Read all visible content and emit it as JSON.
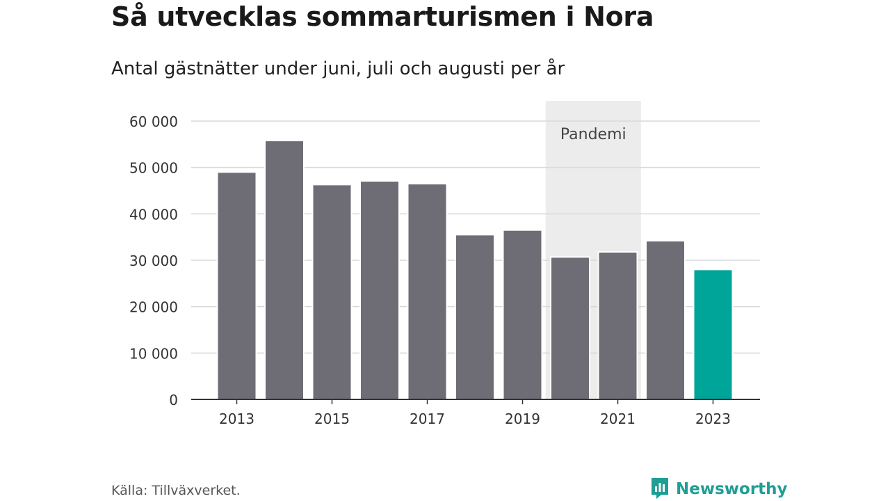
{
  "header": {
    "title": "Så utvecklas sommarturismen i Nora",
    "subtitle": "Antal gästnätter under juni, juli och augusti per år"
  },
  "footer": {
    "source": "Källa: Tillväxverket.",
    "brand": "Newsworthy"
  },
  "colors": {
    "bar": "#6e6d75",
    "highlight": "#00a59a",
    "band": "#ececec",
    "grid": "#d9d9d9",
    "axis": "#333333",
    "brand": "#1f9e95"
  },
  "chart_data": {
    "type": "bar",
    "categories": [
      "2013",
      "2014",
      "2015",
      "2016",
      "2017",
      "2018",
      "2019",
      "2020",
      "2021",
      "2022",
      "2023"
    ],
    "values": [
      49000,
      55800,
      46300,
      47100,
      46500,
      35500,
      36500,
      30700,
      31800,
      34200,
      28000
    ],
    "highlight_category": "2023",
    "x_tick_labels": [
      "2013",
      "2015",
      "2017",
      "2019",
      "2021",
      "2023"
    ],
    "y_ticks": [
      0,
      10000,
      20000,
      30000,
      40000,
      50000,
      60000
    ],
    "y_tick_labels": [
      "0",
      "10 000",
      "20 000",
      "30 000",
      "40 000",
      "50 000",
      "60 000"
    ],
    "ylim": [
      0,
      60000
    ],
    "grid": true,
    "xlabel": "",
    "ylabel": "",
    "annotation": {
      "label": "Pandemi",
      "from": "2020",
      "to": "2021"
    }
  }
}
